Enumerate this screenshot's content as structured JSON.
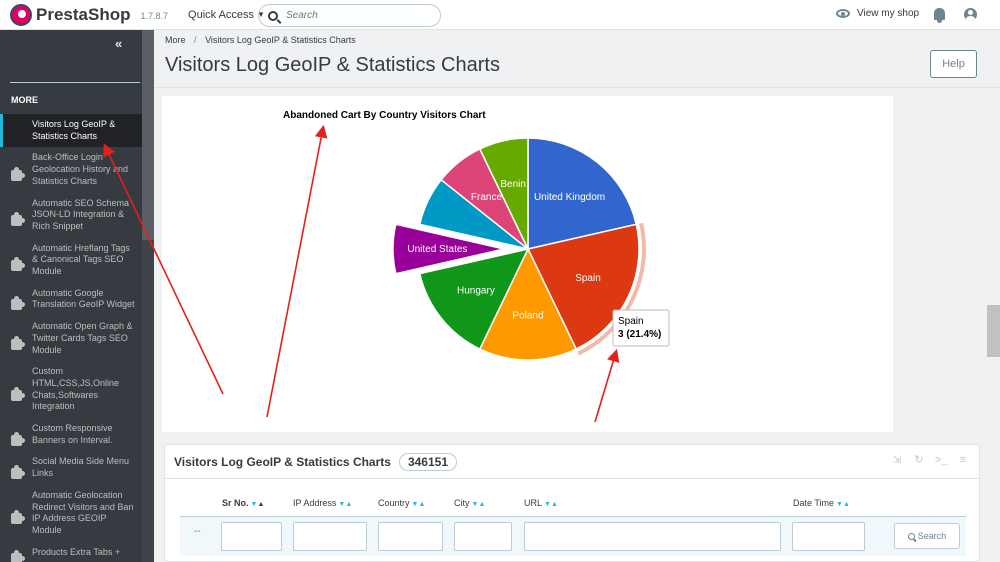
{
  "header": {
    "logo_text": "PrestaShop",
    "version": "1.7.8.7",
    "quick_access": "Quick Access",
    "search_placeholder": "Search",
    "view_shop": "View my shop"
  },
  "sidebar": {
    "collapse_icon": "double-chevron-left-icon",
    "section_label": "MORE",
    "items": [
      {
        "label": "Visitors Log GeoIP & Statistics Charts",
        "active": true
      },
      {
        "label": "Back-Office Login Geolocation History and Statistics Charts"
      },
      {
        "label": "Automatic SEO Schema JSON-LD Integration & Rich Snippet"
      },
      {
        "label": "Automatic Hreflang Tags & Canonical Tags SEO Module"
      },
      {
        "label": "Automatic Google Translation GeoIP Widget"
      },
      {
        "label": "Automatic Open Graph & Twitter Cards Tags SEO Module"
      },
      {
        "label": "Custom HTML,CSS,JS,Online Chats,Softwares Integration"
      },
      {
        "label": "Custom Responsive Banners on Interval."
      },
      {
        "label": "Social Media Side Menu Links"
      },
      {
        "label": "Automatic Geolocation Redirect Visitors and Ban IP Address GEOIP Module"
      },
      {
        "label": "Products Extra Tabs +"
      }
    ]
  },
  "page": {
    "breadcrumb_parent": "More",
    "breadcrumb_current": "Visitors Log GeoIP & Statistics Charts",
    "title": "Visitors Log GeoIP & Statistics Charts",
    "help_label": "Help"
  },
  "chart_data": {
    "type": "pie",
    "title": "Abandoned Cart By Country Visitors Chart",
    "categories": [
      "United Kingdom",
      "Spain",
      "Poland",
      "Hungary",
      "United States",
      "",
      "France",
      "Benin"
    ],
    "values": [
      3,
      3,
      2,
      2,
      1,
      1,
      1,
      1
    ],
    "colors": [
      "#3366cc",
      "#dc3912",
      "#ff9900",
      "#109618",
      "#990099",
      "#0099c6",
      "#dd4477",
      "#66aa00"
    ],
    "exploded": "United States",
    "tooltip": {
      "category": "Spain",
      "value_text": "3 (21.4%)"
    }
  },
  "table": {
    "title": "Visitors Log GeoIP & Statistics Charts",
    "count": "346151",
    "tool_icons": [
      "export-icon",
      "refresh-icon",
      "sql-query-icon",
      "database-icon"
    ],
    "columns": [
      "Sr No.",
      "IP Address",
      "Country",
      "City",
      "URL",
      "Date Time"
    ],
    "filter_dash": "--",
    "search_label": "Search"
  }
}
